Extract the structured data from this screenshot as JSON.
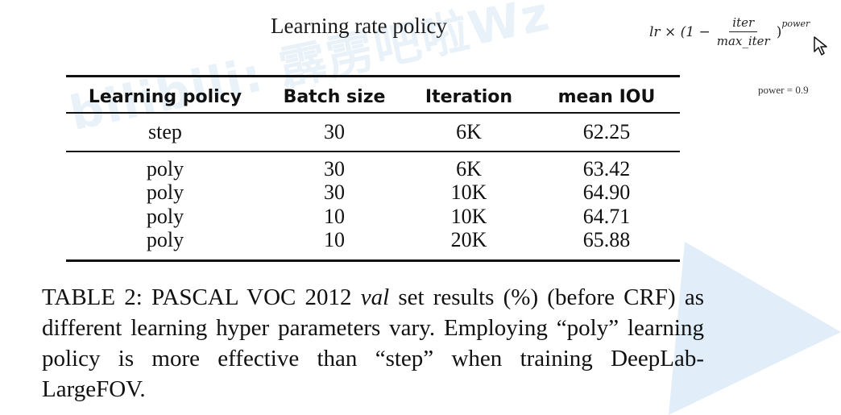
{
  "slide": {
    "title": "Learning rate policy",
    "formula": {
      "lhs": "lr × (1 −",
      "numerator": "iter",
      "denominator": "max_iter",
      "close": ")",
      "exponent": "power"
    },
    "power_note": "power = 0.9",
    "watermark": "bilibili: 霹雳吧啦Wz"
  },
  "table": {
    "headers": [
      "Learning policy",
      "Batch size",
      "Iteration",
      "mean IOU"
    ],
    "rows": [
      [
        "step",
        "30",
        "6K",
        "62.25"
      ],
      [
        "poly",
        "30",
        "6K",
        "63.42"
      ],
      [
        "poly",
        "30",
        "10K",
        "64.90"
      ],
      [
        "poly",
        "10",
        "10K",
        "64.71"
      ],
      [
        "poly",
        "10",
        "20K",
        "65.88"
      ]
    ]
  },
  "caption": {
    "part1": "TABLE 2: PASCAL VOC 2012 ",
    "italic": "val",
    "part2": " set results (%) (before CRF) as different learning hyper parameters vary. Employing “poly” learning policy is more effective than “step” when training DeepLab-LargeFOV."
  },
  "colors": {
    "triangle": "#dcebf8",
    "watermark": "#78aadc"
  }
}
